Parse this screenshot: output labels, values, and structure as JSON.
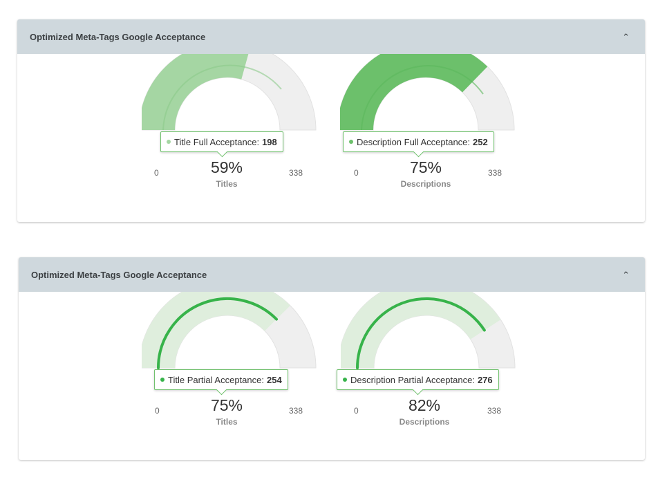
{
  "colors": {
    "header_bg": "#cfd8dd",
    "full_light": "#a5d6a3",
    "full_dark": "#6cc06b",
    "partial_track": "#dfeedd",
    "partial_bar": "#37b34a",
    "remaining": "#efefef"
  },
  "panels": [
    {
      "title": "Optimized Meta-Tags Google Acceptance",
      "collapse_icon": "chevron-up-icon",
      "gauges": [
        {
          "label": "Titles",
          "percent": "59%",
          "min": "0",
          "max": "338",
          "value": 198,
          "tooltip": {
            "label": "Title Full Acceptance:",
            "value": "198"
          }
        },
        {
          "label": "Descriptions",
          "percent": "75%",
          "min": "0",
          "max": "338",
          "value": 252,
          "tooltip": {
            "label": "Description Full Acceptance:",
            "value": "252"
          }
        }
      ]
    },
    {
      "title": "Optimized Meta-Tags Google Acceptance",
      "collapse_icon": "chevron-up-icon",
      "gauges": [
        {
          "label": "Titles",
          "percent": "75%",
          "min": "0",
          "max": "338",
          "value": 254,
          "tooltip": {
            "label": "Title Partial Acceptance:",
            "value": "254"
          }
        },
        {
          "label": "Descriptions",
          "percent": "82%",
          "min": "0",
          "max": "338",
          "value": 276,
          "tooltip": {
            "label": "Description Partial Acceptance:",
            "value": "276"
          }
        }
      ]
    }
  ]
}
